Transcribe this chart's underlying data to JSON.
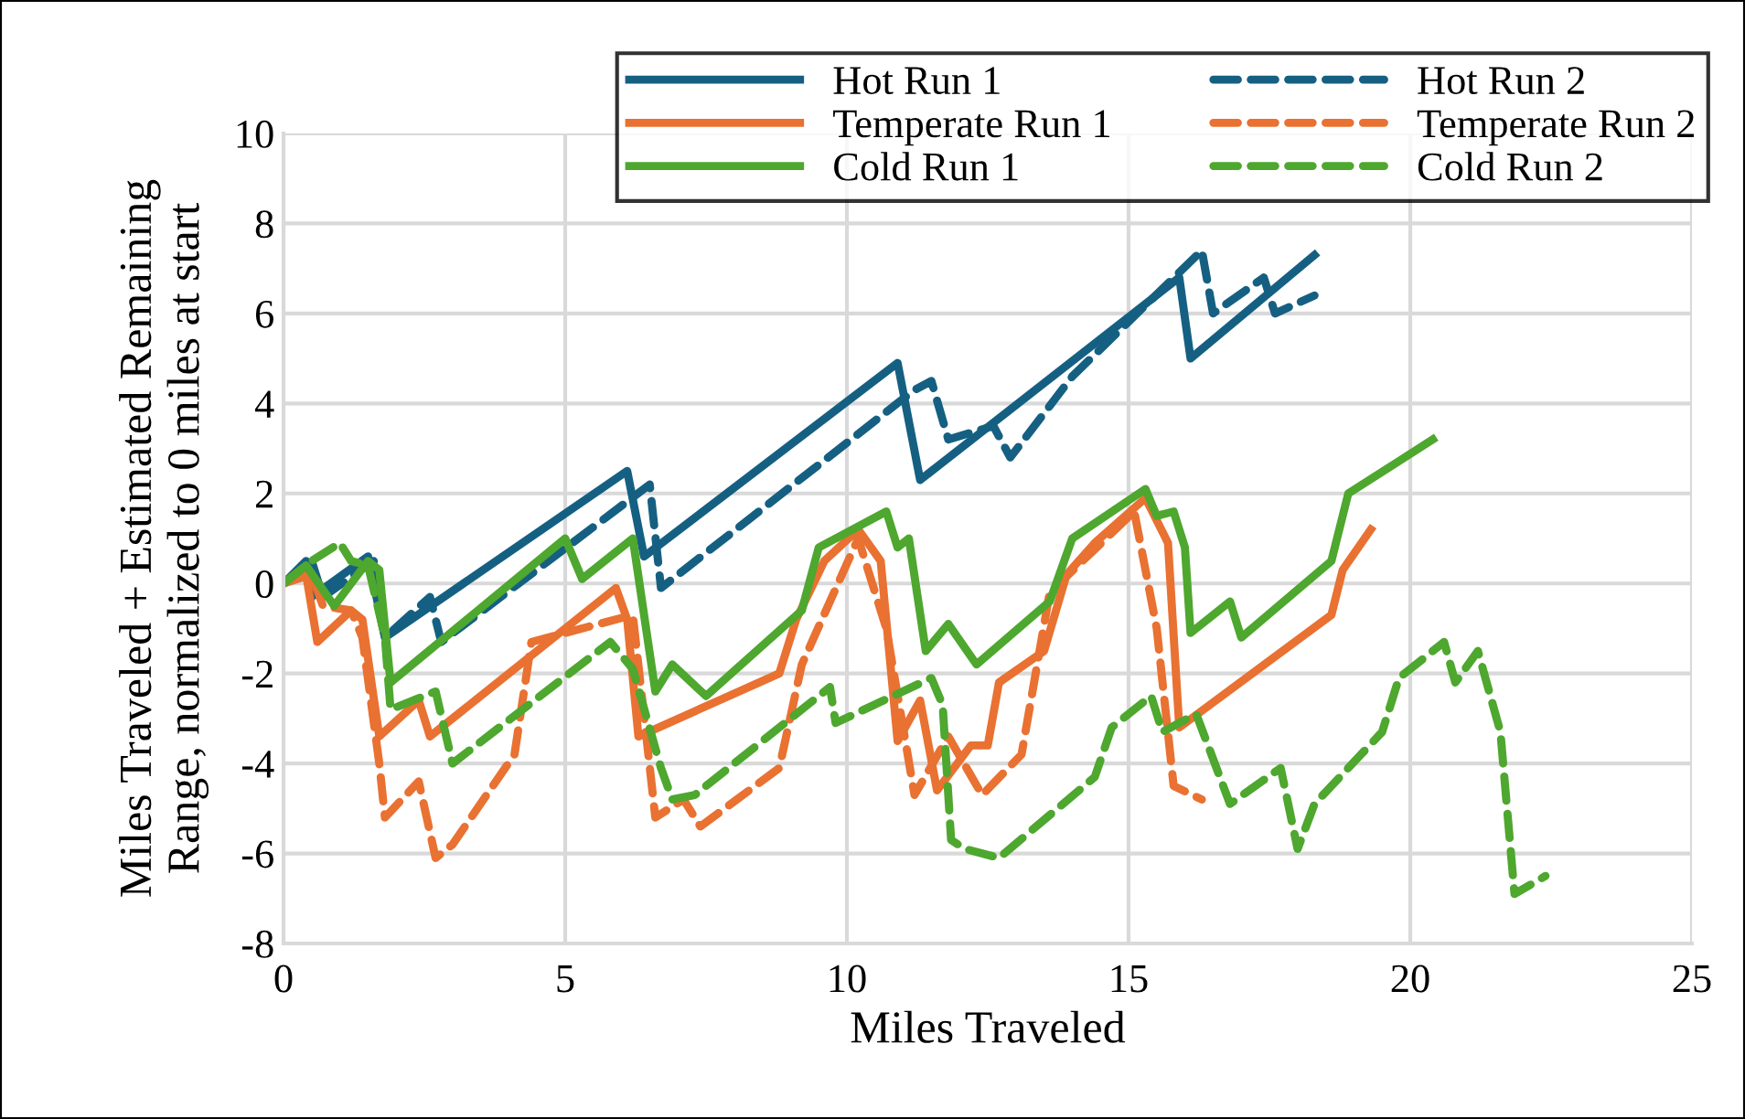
{
  "chart_data": {
    "type": "line",
    "xlabel": "Miles Traveled",
    "ylabel": "Miles Traveled + Estimated Remaining Range, normalized to 0 miles at start",
    "xlim": [
      0,
      25
    ],
    "xticks": [
      0,
      5,
      10,
      15,
      20,
      25
    ],
    "ylim": [
      -8,
      10
    ],
    "yticks": [
      -8,
      -6,
      -4,
      -2,
      0,
      2,
      4,
      6,
      8,
      10
    ],
    "grid": true,
    "legend": "top right",
    "marker": "none",
    "series": [
      {
        "name": "Hot Run 1",
        "color": "#156082",
        "line_style": "solid",
        "x": [
          0,
          0.4,
          0.5,
          1.5,
          1.8,
          6.1,
          6.4,
          10.9,
          11.3,
          15.9,
          16.1,
          18.3
        ],
        "values": [
          0,
          0.5,
          -0.3,
          0.6,
          -1.2,
          2.5,
          0.6,
          4.9,
          2.3,
          6.8,
          5.0,
          7.3
        ]
      },
      {
        "name": "Hot Run 2",
        "color": "#156082",
        "line_style": "dashed",
        "x": [
          0,
          0.5,
          0.7,
          1.6,
          1.8,
          2.6,
          2.8,
          6.5,
          6.7,
          11.2,
          11.5,
          11.8,
          12.6,
          12.9,
          14.0,
          16.3,
          16.5,
          17.4,
          17.6,
          18.3
        ],
        "values": [
          0,
          0.5,
          -0.3,
          0.5,
          -1.2,
          -0.3,
          -1.3,
          2.2,
          -0.1,
          4.3,
          4.5,
          3.2,
          3.5,
          2.8,
          4.6,
          7.4,
          6.0,
          6.8,
          6.0,
          6.4
        ]
      },
      {
        "name": "Temperate Run 1",
        "color": "#e97132",
        "line_style": "solid",
        "x": [
          0,
          0.4,
          0.6,
          1.2,
          1.4,
          1.7,
          2.4,
          2.6,
          5.9,
          6.1,
          6.3,
          8.8,
          9.1,
          9.6,
          10.2,
          10.6,
          10.9,
          11.3,
          11.6,
          12.2,
          12.5,
          12.7,
          13.5,
          13.9,
          14.4,
          15.3,
          15.7,
          15.9,
          18.6,
          18.8,
          19.3
        ],
        "values": [
          0,
          0.2,
          -1.3,
          -0.6,
          -0.8,
          -3.4,
          -2.6,
          -3.4,
          -0.1,
          -0.8,
          -3.4,
          -2.0,
          -0.8,
          0.5,
          1.2,
          0.5,
          -3.5,
          -2.6,
          -4.6,
          -3.6,
          -3.6,
          -2.2,
          -1.5,
          0.2,
          0.9,
          1.9,
          0.9,
          -3.2,
          -0.7,
          0.3,
          1.2
        ]
      },
      {
        "name": "Temperate Run 2",
        "color": "#e97132",
        "line_style": "dashed",
        "x": [
          0,
          0.5,
          0.7,
          1.2,
          1.4,
          1.7,
          1.8,
          2.4,
          2.7,
          3.0,
          4.1,
          4.4,
          6.2,
          6.6,
          7.1,
          7.4,
          8.8,
          9.2,
          10.2,
          10.7,
          11.2,
          11.8,
          12.4,
          13.1,
          13.6,
          15.1,
          15.5,
          15.8,
          16.3
        ],
        "values": [
          0,
          0.2,
          -0.5,
          -0.6,
          -1.2,
          -4.0,
          -5.2,
          -4.4,
          -6.1,
          -5.8,
          -3.8,
          -1.3,
          -0.7,
          -5.2,
          -4.8,
          -5.4,
          -4.1,
          -1.8,
          1.0,
          -1.0,
          -4.7,
          -3.4,
          -4.7,
          -3.8,
          -0.2,
          1.6,
          -1.0,
          -4.5,
          -4.8
        ]
      },
      {
        "name": "Cold Run 1",
        "color": "#4ea72e",
        "line_style": "solid",
        "x": [
          0,
          0.4,
          0.9,
          1.5,
          1.7,
          1.9,
          5.0,
          5.3,
          6.2,
          6.6,
          6.9,
          7.5,
          9.2,
          9.5,
          10.7,
          10.9,
          11.1,
          11.4,
          11.8,
          12.3,
          13.6,
          14.0,
          15.3,
          15.5,
          15.8,
          16.0,
          16.1,
          16.8,
          17.0,
          18.6,
          18.9,
          20.4
        ],
        "values": [
          0,
          0.4,
          -0.5,
          0.5,
          0.3,
          -2.2,
          1.0,
          0.1,
          1.0,
          -2.4,
          -1.8,
          -2.5,
          -0.6,
          0.8,
          1.6,
          0.8,
          1.0,
          -1.5,
          -0.9,
          -1.8,
          -0.4,
          1.0,
          2.1,
          1.5,
          1.6,
          0.8,
          -1.1,
          -0.4,
          -1.2,
          0.5,
          2.0,
          3.2
        ]
      },
      {
        "name": "Cold Run 2",
        "color": "#4ea72e",
        "line_style": "dashed",
        "x": [
          0,
          0.5,
          1.0,
          1.2,
          1.5,
          1.8,
          1.9,
          2.5,
          2.7,
          3.0,
          5.8,
          6.2,
          6.7,
          6.9,
          7.3,
          9.7,
          9.8,
          11.5,
          11.7,
          11.85,
          12.1,
          12.7,
          14.4,
          14.7,
          15.4,
          15.6,
          16.2,
          16.8,
          17.7,
          18.0,
          18.3,
          19.5,
          19.8,
          20.6,
          20.8,
          21.2,
          21.6,
          21.85,
          22.4
        ],
        "values": [
          0,
          0.5,
          0.9,
          0.5,
          0.4,
          -1.2,
          -2.8,
          -2.5,
          -2.4,
          -4.0,
          -1.3,
          -1.9,
          -4.1,
          -4.8,
          -4.7,
          -2.3,
          -3.1,
          -2.1,
          -2.7,
          -5.7,
          -5.9,
          -6.1,
          -4.3,
          -3.2,
          -2.5,
          -3.3,
          -2.9,
          -4.9,
          -4.1,
          -5.9,
          -4.9,
          -3.3,
          -2.1,
          -1.3,
          -2.2,
          -1.5,
          -3.3,
          -6.9,
          -6.5
        ]
      }
    ]
  }
}
